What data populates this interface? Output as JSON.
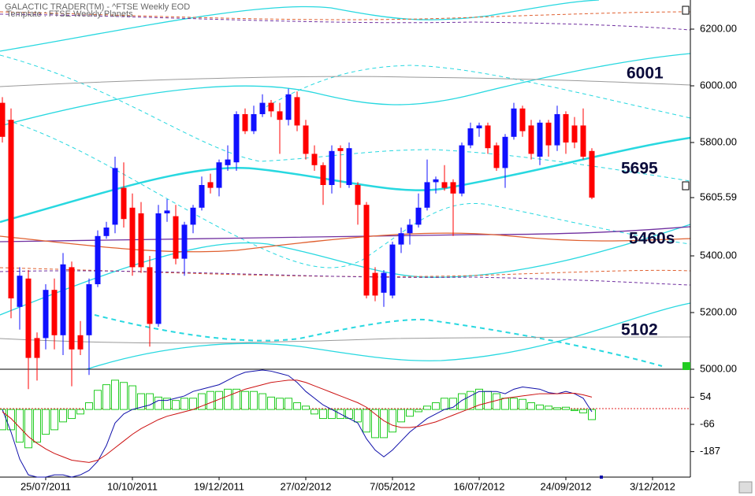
{
  "header": {
    "title": "GALACTIC TRADER(TM) - ^FTSE Weekly EOD",
    "template": "Template : FTSE Weekly Planets"
  },
  "chart_data": [
    {
      "type": "candlestick",
      "up_color": "#1010ff",
      "down_color": "#ff0000",
      "categories": [
        null,
        null,
        null,
        null,
        null,
        "25/07/2011",
        null,
        null,
        null,
        null,
        null,
        null,
        null,
        null,
        null,
        "10/10/2011",
        null,
        null,
        null,
        null,
        null,
        null,
        null,
        null,
        null,
        "19/12/2011",
        null,
        null,
        null,
        null,
        null,
        null,
        null,
        null,
        null,
        "27/02/2012",
        null,
        null,
        null,
        null,
        null,
        null,
        null,
        null,
        null,
        "7/05/2012",
        null,
        null,
        null,
        null,
        null,
        null,
        null,
        null,
        null,
        "16/07/2012",
        null,
        null,
        null,
        null,
        null,
        null,
        null,
        null,
        null,
        "24/09/2012",
        null,
        null,
        null,
        null,
        null,
        null,
        null,
        null,
        null,
        "3/12/2012",
        null,
        null,
        null,
        null
      ],
      "open": [
        5940,
        5880,
        5220,
        5320,
        5110,
        5110,
        5280,
        5120,
        5360,
        5120,
        5120,
        5300,
        5470,
        5510,
        5640,
        5570,
        5550,
        5360,
        5160,
        5550,
        5540,
        5390,
        5510,
        5570,
        5660,
        5640,
        5720,
        5730,
        5900,
        5840,
        5900,
        5940,
        5910,
        5880,
        5960,
        5860,
        5760,
        5720,
        5650,
        5780,
        5650,
        5650,
        5580,
        5340,
        5270,
        5260,
        5440,
        5480,
        5510,
        5570,
        5660,
        5660,
        5660,
        5620,
        5790,
        5850,
        5860,
        5790,
        5710,
        5820,
        5920,
        5860,
        5750,
        5870,
        5790,
        5900,
        5860,
        5860,
        5770,
        null,
        null,
        null,
        null,
        null,
        null,
        null,
        null,
        null,
        null,
        null
      ],
      "high": [
        5960,
        5920,
        5360,
        5350,
        5130,
        5300,
        5320,
        5410,
        5380,
        5170,
        5320,
        5490,
        5520,
        5750,
        5730,
        5620,
        5590,
        5400,
        5580,
        5600,
        5580,
        5520,
        5580,
        5680,
        5690,
        5740,
        5790,
        5910,
        5920,
        5930,
        5970,
        5950,
        5940,
        5990,
        5980,
        5880,
        5790,
        5730,
        5790,
        5790,
        5800,
        5660,
        5590,
        5360,
        5350,
        5450,
        5500,
        5530,
        5620,
        5740,
        5680,
        5720,
        5670,
        5800,
        5870,
        5870,
        5870,
        5800,
        5830,
        5940,
        5930,
        5880,
        5880,
        5880,
        5930,
        5910,
        5890,
        5920,
        5780,
        null,
        null,
        null,
        null,
        null,
        null,
        null,
        null,
        null,
        null,
        null
      ],
      "low": [
        5800,
        5180,
        5140,
        4930,
        4960,
        5070,
        5070,
        5050,
        4940,
        5050,
        4980,
        5290,
        5460,
        5480,
        5500,
        5330,
        5340,
        5080,
        5150,
        5520,
        5370,
        5330,
        5480,
        5560,
        5620,
        5610,
        5700,
        5700,
        5830,
        5830,
        5890,
        5890,
        5760,
        5860,
        5840,
        5740,
        5700,
        5580,
        5620,
        5640,
        5640,
        5510,
        5250,
        5240,
        5220,
        5250,
        5410,
        5440,
        5500,
        5560,
        5620,
        5630,
        5470,
        5610,
        5780,
        5820,
        5760,
        5700,
        5640,
        5810,
        5820,
        5740,
        5720,
        5750,
        5770,
        5760,
        5780,
        5740,
        5600,
        null,
        null,
        null,
        null,
        null,
        null,
        null,
        null,
        null,
        null,
        null
      ],
      "close": [
        5820,
        5250,
        5330,
        5040,
        5040,
        5280,
        5120,
        5370,
        5070,
        5070,
        5300,
        5470,
        5500,
        5710,
        5530,
        5360,
        5360,
        5160,
        5550,
        5560,
        5390,
        5510,
        5570,
        5650,
        5640,
        5730,
        5740,
        5900,
        5840,
        5900,
        5940,
        5910,
        5880,
        5970,
        5860,
        5760,
        5720,
        5650,
        5770,
        5770,
        5780,
        5580,
        5260,
        5260,
        5340,
        5440,
        5480,
        5510,
        5570,
        5660,
        5670,
        5640,
        5620,
        5790,
        5850,
        5860,
        5780,
        5710,
        5820,
        5920,
        5840,
        5760,
        5870,
        5790,
        5900,
        5800,
        5800,
        5750,
        5605.59,
        null,
        null,
        null,
        null,
        null,
        null,
        null,
        null,
        null,
        null,
        null
      ],
      "ylim": [
        5000,
        6300
      ],
      "yticks": [
        {
          "value": 5000,
          "label": "5000.00"
        },
        {
          "value": 5200,
          "label": "5200.00"
        },
        {
          "value": 5400,
          "label": "5400.00"
        },
        5605.59,
        {
          "value": 5800,
          "label": "5800.00"
        },
        {
          "value": 6000,
          "label": "6000.00"
        },
        {
          "value": 6200,
          "label": "6200.00"
        }
      ],
      "annotations": [
        "6001",
        "5695",
        "5460s",
        "5102"
      ]
    },
    {
      "type": "oscillator",
      "ylim": [
        -300,
        175
      ],
      "yticks": [
        54,
        -66,
        -187
      ],
      "histogram": {
        "color": "#22cc22",
        "values": [
          -90,
          -90,
          -145,
          -170,
          -145,
          -110,
          -90,
          -55,
          -40,
          -20,
          30,
          85,
          110,
          130,
          120,
          105,
          70,
          70,
          55,
          50,
          40,
          50,
          50,
          70,
          80,
          80,
          90,
          90,
          80,
          80,
          70,
          55,
          50,
          50,
          30,
          15,
          -20,
          -40,
          -40,
          -40,
          -40,
          -55,
          -100,
          -125,
          -125,
          -100,
          -55,
          -30,
          -10,
          15,
          30,
          50,
          50,
          70,
          80,
          90,
          80,
          70,
          50,
          50,
          45,
          30,
          20,
          15,
          8,
          10,
          -5,
          -15,
          -45,
          null,
          null,
          null,
          null,
          null,
          null,
          null,
          null,
          null,
          null,
          null
        ]
      },
      "lines": [
        {
          "color": "#1010aa",
          "values": [
            0,
            -100,
            -220,
            -290,
            -300,
            -300,
            -290,
            -290,
            -300,
            -290,
            -270,
            -230,
            -160,
            -60,
            -20,
            0,
            10,
            20,
            40,
            40,
            50,
            60,
            80,
            90,
            100,
            110,
            130,
            150,
            165,
            170,
            175,
            170,
            160,
            150,
            120,
            80,
            50,
            20,
            0,
            -20,
            -40,
            -60,
            -130,
            -180,
            -210,
            -180,
            -140,
            -100,
            -70,
            -40,
            -20,
            0,
            10,
            40,
            60,
            80,
            80,
            80,
            70,
            90,
            100,
            95,
            90,
            75,
            70,
            80,
            70,
            50,
            -10,
            null,
            null,
            null,
            null,
            null,
            null,
            null,
            null,
            null,
            null,
            null
          ]
        },
        {
          "color": "#cc1010",
          "values": [
            -10,
            -40,
            -80,
            -120,
            -150,
            -175,
            -195,
            -210,
            -225,
            -230,
            -235,
            -225,
            -200,
            -170,
            -140,
            -110,
            -85,
            -65,
            -45,
            -30,
            -20,
            -10,
            0,
            15,
            30,
            45,
            60,
            75,
            90,
            100,
            110,
            120,
            125,
            130,
            130,
            120,
            105,
            90,
            75,
            60,
            45,
            30,
            10,
            -20,
            -50,
            -70,
            -80,
            -80,
            -75,
            -65,
            -55,
            -40,
            -25,
            -10,
            5,
            20,
            30,
            40,
            50,
            55,
            60,
            65,
            70,
            70,
            70,
            72,
            72,
            65,
            55,
            null,
            null,
            null,
            null,
            null,
            null,
            null,
            null,
            null,
            null,
            null
          ]
        }
      ]
    }
  ]
}
